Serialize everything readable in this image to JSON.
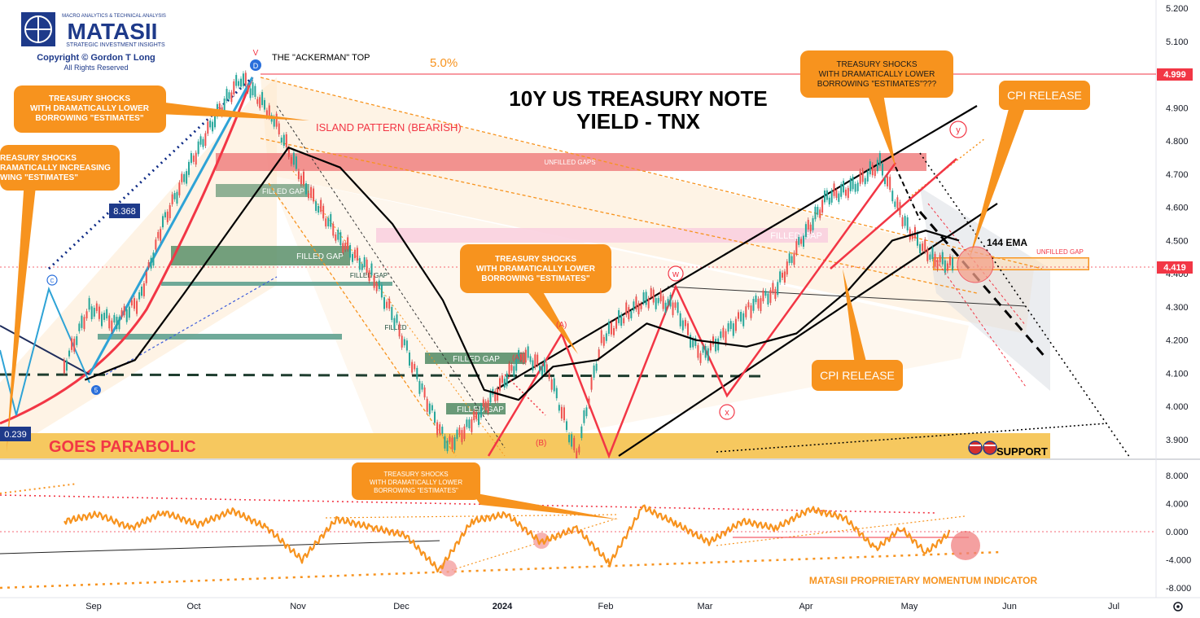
{
  "chart_data": [
    {
      "type": "line",
      "title": "10Y US TREASURY NOTE YIELD - TNX",
      "title_lines": [
        "10Y US TREASURY NOTE",
        "YIELD - TNX"
      ],
      "x_ticks": [
        "Sep",
        "Oct",
        "Nov",
        "Dec",
        "2024",
        "Feb",
        "Mar",
        "Apr",
        "May",
        "Jun",
        "Jul"
      ],
      "y_ticks": [
        "5.200",
        "5.100",
        "5.000",
        "4.900",
        "4.800",
        "4.700",
        "4.600",
        "4.500",
        "4.400",
        "4.300",
        "4.200",
        "4.100",
        "4.000",
        "3.900"
      ],
      "ylim": [
        3.86,
        5.2
      ],
      "price_tags": {
        "top_level": "4.999",
        "current": "4.419"
      },
      "series": [
        {
          "kind": "price",
          "points": [
            [
              "Sep",
              4.12
            ],
            [
              "Sep",
              4.3
            ],
            [
              "Sep",
              4.25
            ],
            [
              "Sep",
              4.32
            ],
            [
              "Oct",
              4.55
            ],
            [
              "Oct",
              4.72
            ],
            [
              "Oct",
              4.87
            ],
            [
              "Oct",
              4.99
            ],
            [
              "Nov",
              4.88
            ],
            [
              "Nov",
              4.66
            ],
            [
              "Nov",
              4.5
            ],
            [
              "Dec",
              4.4
            ],
            [
              "Dec",
              4.25
            ],
            [
              "Dec",
              4.05
            ],
            [
              "Dec",
              3.88
            ],
            [
              "2024",
              3.95
            ],
            [
              "2024",
              4.05
            ],
            [
              "2024",
              4.16
            ],
            [
              "2024",
              4.1
            ],
            [
              "Feb",
              3.85
            ],
            [
              "Feb",
              4.2
            ],
            [
              "Feb",
              4.28
            ],
            [
              "Feb",
              4.33
            ],
            [
              "Mar",
              4.3
            ],
            [
              "Mar",
              4.15
            ],
            [
              "Mar",
              4.22
            ],
            [
              "Mar",
              4.3
            ],
            [
              "Apr",
              4.35
            ],
            [
              "Apr",
              4.5
            ],
            [
              "Apr",
              4.63
            ],
            [
              "Apr",
              4.66
            ],
            [
              "May",
              4.73
            ],
            [
              "May",
              4.55
            ],
            [
              "May",
              4.45
            ],
            [
              "May",
              4.42
            ]
          ]
        },
        {
          "kind": "ema",
          "name": "144 EMA",
          "points": [
            [
              "Sep",
              4.08
            ],
            [
              "Sep",
              4.14
            ],
            [
              "Oct",
              4.34
            ],
            [
              "Oct",
              4.56
            ],
            [
              "Nov",
              4.78
            ],
            [
              "Nov",
              4.72
            ],
            [
              "Dec",
              4.55
            ],
            [
              "Dec",
              4.32
            ],
            [
              "2024",
              4.05
            ],
            [
              "2024",
              4.02
            ],
            [
              "2024",
              4.12
            ],
            [
              "Feb",
              4.14
            ],
            [
              "Feb",
              4.25
            ],
            [
              "Mar",
              4.2
            ],
            [
              "Mar",
              4.18
            ],
            [
              "Apr",
              4.22
            ],
            [
              "Apr",
              4.35
            ],
            [
              "May",
              4.5
            ],
            [
              "May",
              4.53
            ],
            [
              "May",
              4.5
            ]
          ]
        }
      ],
      "annotations": {
        "ackerman_top": "THE \"ACKERMAN\" TOP",
        "pct_5": "5.0%",
        "island": "ISLAND PATTERN (BEARISH)",
        "unfilled_gaps": "UNFILLED GAPS",
        "filled_gap": "FILLED GAP",
        "filled_gap_upper": "FILLED GAP",
        "filled_gap_mid": "FILLED GAP",
        "filled_gap_b": "FILLED GAP",
        "filled_gap_c": "FILLED GAP",
        "filled_gap_d": "FILLED",
        "filled_gap_e": "FILLED GAP",
        "filled_gap_pink": "FILLED GAP",
        "unfilled_gap_small": "UNFILLED GAP",
        "ema_label": "144 EMA",
        "goes_parabolic": "GOES PARABOLIC",
        "support": "SUPPORT",
        "cpi_release": "CPI RELEASE",
        "box_8368": "8.368",
        "box_0239": "0.239",
        "callout_treasury_lower": "TREASURY SHOCKS WITH DRAMATICALLY LOWER BORROWING \"ESTIMATES\"",
        "callout_treasury_lower_lines": [
          "TREASURY SHOCKS",
          "WITH DRAMATICALLY LOWER",
          "BORROWING \"ESTIMATES\""
        ],
        "callout_treasury_increasing_lines": [
          "REASURY SHOCKS",
          "RAMATICALLY INCREASING",
          "WING \"ESTIMATES\""
        ],
        "callout_treasury_top_lines": [
          "TREASURY SHOCKS",
          "WITH DRAMATICALLY LOWER",
          "BORROWING \"ESTIMATES\"???"
        ],
        "callout_mid_lines": [
          "TREASURY SHOCKS",
          "WITH DRAMATICALLY LOWER",
          "BORROWING \"ESTIMATES\""
        ],
        "wave_A": "(A)",
        "wave_B": "(B)",
        "wave_w": "w",
        "wave_x": "x",
        "wave_y": "y",
        "wave_D": "D",
        "wave_C": "C",
        "wave_5": "5",
        "v_mark": "V"
      }
    },
    {
      "type": "line",
      "name": "MATASII PROPRIETARY MOMENTUM INDICATOR",
      "y_ticks": [
        "8.000",
        "4.000",
        "0.000",
        "-4.000",
        "-8.000"
      ],
      "ylim": [
        -8.5,
        8.5
      ],
      "callout_lines": [
        "TREASURY SHOCKS",
        "WITH DRAMATICALLY LOWER",
        "BORROWING \"ESTIMATES\""
      ],
      "points": [
        [
          "Sep",
          1.5
        ],
        [
          "Sep",
          2.5
        ],
        [
          "Sep",
          0.5
        ],
        [
          "Oct",
          2.8
        ],
        [
          "Oct",
          1.0
        ],
        [
          "Oct",
          3.0
        ],
        [
          "Nov",
          0.5
        ],
        [
          "Nov",
          -4.0
        ],
        [
          "Nov",
          1.8
        ],
        [
          "Dec",
          0.6
        ],
        [
          "Dec",
          -0.5
        ],
        [
          "Dec",
          -5.5
        ],
        [
          "2024",
          1.5
        ],
        [
          "2024",
          2.5
        ],
        [
          "2024",
          -1.5
        ],
        [
          "Feb",
          0.5
        ],
        [
          "Feb",
          -4.5
        ],
        [
          "Feb",
          3.5
        ],
        [
          "Mar",
          1.2
        ],
        [
          "Mar",
          -1.5
        ],
        [
          "Mar",
          1.5
        ],
        [
          "Apr",
          0.5
        ],
        [
          "Apr",
          3.2
        ],
        [
          "Apr",
          2.0
        ],
        [
          "May",
          -2.5
        ],
        [
          "May",
          0.5
        ],
        [
          "May",
          -3.0
        ],
        [
          "May",
          0.0
        ]
      ]
    }
  ],
  "branding": {
    "tagline": "MACRO ANALYTICS & TECHNICAL ANALYSIS",
    "name": "MATASII",
    "subtitle": "STRATEGIC INVESTMENT INSIGHTS",
    "copyright": "Copyright © Gordon T Long",
    "rights": "All Rights Reserved"
  },
  "colors": {
    "orange": "#f7931e",
    "red": "#f23645",
    "black": "#000000",
    "navy": "#0d2a85",
    "teal": "#26a69a",
    "gap_red": "#f08080",
    "gap_pink": "#f8c8d8",
    "gap_green": "#5a8f6a"
  }
}
